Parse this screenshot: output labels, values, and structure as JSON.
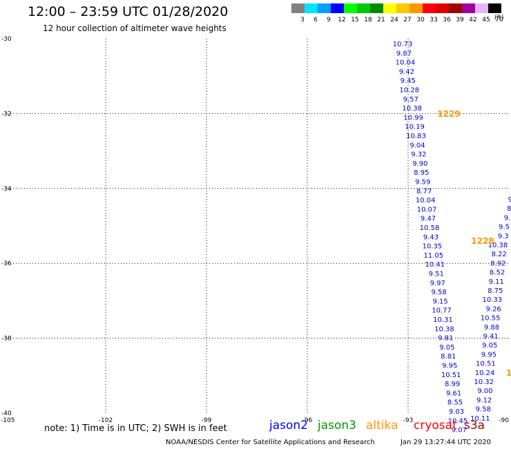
{
  "title": "12:00 – 23:59 UTC 01/28/2020",
  "subtitle": "12 hour collection of altimeter wave heights",
  "colorbar": {
    "unit_label": "(ft)",
    "swatches": [
      {
        "color": "#808080",
        "label": "3"
      },
      {
        "color": "#00e4ff",
        "label": "6"
      },
      {
        "color": "#00a0ff",
        "label": "9"
      },
      {
        "color": "#0000ff",
        "label": "12"
      },
      {
        "color": "#00ff00",
        "label": "15"
      },
      {
        "color": "#00c800",
        "label": "18"
      },
      {
        "color": "#008c00",
        "label": "21"
      },
      {
        "color": "#ffff00",
        "label": "24"
      },
      {
        "color": "#ffc800",
        "label": "27"
      },
      {
        "color": "#ff9600",
        "label": "30"
      },
      {
        "color": "#ff0000",
        "label": "33"
      },
      {
        "color": "#dc0000",
        "label": "36"
      },
      {
        "color": "#a00000",
        "label": "39"
      },
      {
        "color": "#a000a0",
        "label": "42"
      },
      {
        "color": "#e6b4ff",
        "label": "45"
      },
      {
        "color": "#000000",
        "label": "70"
      }
    ]
  },
  "map": {
    "lon_range": [
      -105,
      -90
    ],
    "lat_range": [
      -40,
      -30
    ],
    "lon_ticks": [
      "-105",
      "-102",
      "-99",
      "-96",
      "-93",
      "-90"
    ],
    "lat_ticks": [
      "-30",
      "-32",
      "-34",
      "-36",
      "-38",
      "-40"
    ],
    "gridlines_lon": [
      -102,
      -99,
      -96,
      -93
    ],
    "gridlines_lat": [
      -32,
      -34,
      -36,
      -38
    ],
    "track1": {
      "color": "#0000cd",
      "values": [
        "10.73",
        "9.87",
        "10.04",
        "9.42",
        "9.45",
        "10.28",
        "9.57",
        "10.38",
        "10.99",
        "10.19",
        "10.83",
        "9.04",
        "9.32",
        "9.90",
        "8.95",
        "9.59",
        "8.77",
        "10.04",
        "10.07",
        "9.47",
        "10.58",
        "9.43",
        "10.35",
        "11.05",
        "10.41",
        "9.51",
        "9.97",
        "9.58",
        "9.15",
        "10.77",
        "10.31",
        "10.38",
        "9.81",
        "9.05",
        "8.81",
        "9.95",
        "10.51",
        "8.99",
        "9.61",
        "8.55",
        "9.03",
        "10.45",
        "9.07"
      ],
      "time_label": "1229"
    },
    "track2": {
      "color": "#0000cd",
      "values": [
        "9",
        "8",
        "9.",
        "9.5",
        "9.3",
        "10.38",
        "8.22",
        "8.92",
        "8.52",
        "9.11",
        "8.75",
        "10.33",
        "9.26",
        "10.55",
        "9.88",
        "9.41",
        "9.05",
        "9.95",
        "10.51",
        "10.24",
        "10.32",
        "9.00",
        "9.12",
        "9.58",
        "10.11"
      ],
      "time_label": "1228"
    },
    "edge_time_label": "1"
  },
  "legend": {
    "note": "note:  1) Time is in UTC;  2) SWH is in feet",
    "satellites": [
      {
        "name": "jason2",
        "color": "#0000ff"
      },
      {
        "name": "jason3",
        "color": "#009600"
      },
      {
        "name": "altika",
        "color": "#ff9600"
      },
      {
        "name": "cryosat",
        "color": "#ff0000"
      },
      {
        "name": "s3a",
        "color": "#a00000"
      }
    ]
  },
  "credit": "NOAA/NESDIS Center for Satellite Applications and Research",
  "timestamp": "Jan 29 13:27:44 UTC 2020"
}
